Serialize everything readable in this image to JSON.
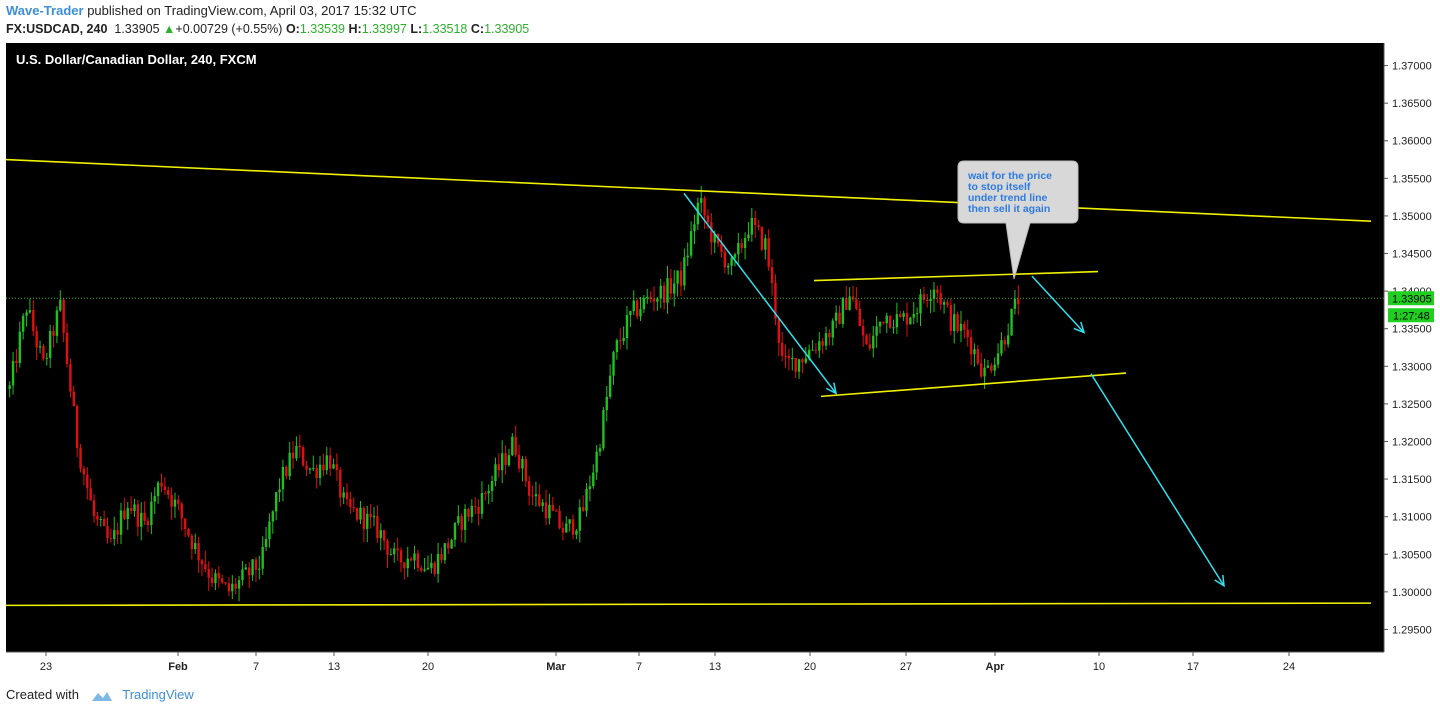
{
  "header": {
    "author": "Wave-Trader",
    "published": "published on TradingView.com, April 03, 2017 15:32 UTC",
    "symbol": "FX:USDCAD, 240",
    "last": "1.33905",
    "change": "+0.00729 (+0.55%)",
    "open_label": "O:",
    "open": "1.33539",
    "high_label": "H:",
    "high": "1.33997",
    "low_label": "L:",
    "low": "1.33518",
    "close_label": "C:",
    "close": "1.33905"
  },
  "footer": {
    "created_with": "Created with",
    "brand": "TradingView"
  },
  "colors": {
    "bg": "#000000",
    "up": "#20c020",
    "down": "#e01010",
    "trend": "#f0f000",
    "arrow": "#30e0f0",
    "price_tag": "#20d020"
  },
  "chart_data": {
    "type": "candlestick",
    "title": "U.S. Dollar/Canadian Dollar, 240, FXCM",
    "ylim": [
      1.292,
      1.373
    ],
    "y_ticks": [
      1.295,
      1.3,
      1.305,
      1.31,
      1.315,
      1.32,
      1.325,
      1.33,
      1.335,
      1.34,
      1.345,
      1.35,
      1.355,
      1.36,
      1.365,
      1.37
    ],
    "y_tick_labels": [
      "1.29500",
      "1.30000",
      "1.30500",
      "1.31000",
      "1.31500",
      "1.32000",
      "1.32500",
      "1.33000",
      "1.33500",
      "1.34000",
      "1.34500",
      "1.35000",
      "1.35500",
      "1.36000",
      "1.36500",
      "1.37000"
    ],
    "x_tick_labels": [
      "23",
      "Feb",
      "7",
      "13",
      "20",
      "Mar",
      "7",
      "13",
      "20",
      "27",
      "Apr",
      "10",
      "17",
      "24"
    ],
    "last_price_label": "1.33905",
    "countdown_label": "1:27:48",
    "price_path": [
      1.327,
      1.338,
      1.33,
      1.338,
      1.32,
      1.31,
      1.306,
      1.312,
      1.309,
      1.315,
      1.311,
      1.306,
      1.302,
      1.3,
      1.302,
      1.304,
      1.314,
      1.319,
      1.316,
      1.318,
      1.311,
      1.31,
      1.308,
      1.304,
      1.305,
      1.303,
      1.306,
      1.31,
      1.312,
      1.316,
      1.32,
      1.313,
      1.311,
      1.308,
      1.31,
      1.319,
      1.332,
      1.337,
      1.339,
      1.34,
      1.342,
      1.352,
      1.346,
      1.343,
      1.349,
      1.346,
      1.33,
      1.331,
      1.333,
      1.335,
      1.34,
      1.332,
      1.337,
      1.336,
      1.338,
      1.341,
      1.336,
      1.334,
      1.329,
      1.333,
      1.339
    ],
    "trendlines": [
      {
        "name": "upper-resistance",
        "from": [
          "left",
          1.3575
        ],
        "to": [
          "Apr+30d",
          1.3493
        ]
      },
      {
        "name": "lower-support",
        "from": [
          "left",
          1.2982
        ],
        "to": [
          "Apr+30d",
          1.2985
        ]
      },
      {
        "name": "channel-top",
        "from": [
          "Mar 20",
          1.3414
        ],
        "to": [
          "Apr 10",
          1.3426
        ]
      },
      {
        "name": "channel-bottom",
        "from": [
          "Mar 20",
          1.326
        ],
        "to": [
          "Apr 11",
          1.3291
        ]
      }
    ],
    "arrows": [
      {
        "name": "drop-arrow",
        "from": [
          "Mar 10",
          1.353
        ],
        "to": [
          "Mar 21",
          1.3264
        ]
      },
      {
        "name": "near-term-arrow",
        "from": [
          "Apr 3",
          1.342
        ],
        "to": [
          "Apr 9",
          1.3345
        ]
      },
      {
        "name": "target-arrow",
        "from": [
          "Apr 9",
          1.329
        ],
        "to": [
          "Apr 23",
          1.3008
        ]
      }
    ],
    "callout": "wait for the price to stop itself under trend line then sell it again",
    "callout_lines": [
      "wait for the price",
      "to stop itself",
      "under trend line",
      "then sell it again"
    ]
  }
}
